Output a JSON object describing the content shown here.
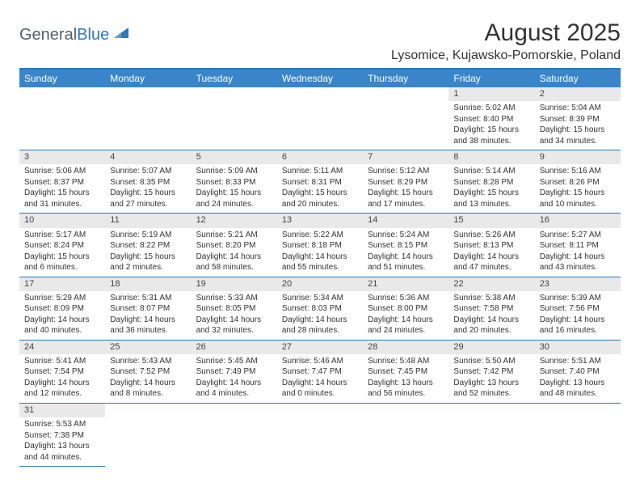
{
  "brand": {
    "general": "General",
    "blue": "Blue",
    "sail_color": "#2f77b8"
  },
  "title": {
    "month_year": "August 2025",
    "location": "Lysomice, Kujawsko-Pomorskie, Poland"
  },
  "calendar": {
    "header_bg": "#3a85c9",
    "header_fg": "#ffffff",
    "rule_color": "#2f77b8",
    "daynum_bg": "#e9e9e9",
    "columns": [
      "Sunday",
      "Monday",
      "Tuesday",
      "Wednesday",
      "Thursday",
      "Friday",
      "Saturday"
    ],
    "first_weekday_index": 5,
    "days": [
      {
        "n": 1,
        "sunrise": "5:02 AM",
        "sunset": "8:40 PM",
        "daylight": "15 hours and 38 minutes."
      },
      {
        "n": 2,
        "sunrise": "5:04 AM",
        "sunset": "8:39 PM",
        "daylight": "15 hours and 34 minutes."
      },
      {
        "n": 3,
        "sunrise": "5:06 AM",
        "sunset": "8:37 PM",
        "daylight": "15 hours and 31 minutes."
      },
      {
        "n": 4,
        "sunrise": "5:07 AM",
        "sunset": "8:35 PM",
        "daylight": "15 hours and 27 minutes."
      },
      {
        "n": 5,
        "sunrise": "5:09 AM",
        "sunset": "8:33 PM",
        "daylight": "15 hours and 24 minutes."
      },
      {
        "n": 6,
        "sunrise": "5:11 AM",
        "sunset": "8:31 PM",
        "daylight": "15 hours and 20 minutes."
      },
      {
        "n": 7,
        "sunrise": "5:12 AM",
        "sunset": "8:29 PM",
        "daylight": "15 hours and 17 minutes."
      },
      {
        "n": 8,
        "sunrise": "5:14 AM",
        "sunset": "8:28 PM",
        "daylight": "15 hours and 13 minutes."
      },
      {
        "n": 9,
        "sunrise": "5:16 AM",
        "sunset": "8:26 PM",
        "daylight": "15 hours and 10 minutes."
      },
      {
        "n": 10,
        "sunrise": "5:17 AM",
        "sunset": "8:24 PM",
        "daylight": "15 hours and 6 minutes."
      },
      {
        "n": 11,
        "sunrise": "5:19 AM",
        "sunset": "8:22 PM",
        "daylight": "15 hours and 2 minutes."
      },
      {
        "n": 12,
        "sunrise": "5:21 AM",
        "sunset": "8:20 PM",
        "daylight": "14 hours and 58 minutes."
      },
      {
        "n": 13,
        "sunrise": "5:22 AM",
        "sunset": "8:18 PM",
        "daylight": "14 hours and 55 minutes."
      },
      {
        "n": 14,
        "sunrise": "5:24 AM",
        "sunset": "8:15 PM",
        "daylight": "14 hours and 51 minutes."
      },
      {
        "n": 15,
        "sunrise": "5:26 AM",
        "sunset": "8:13 PM",
        "daylight": "14 hours and 47 minutes."
      },
      {
        "n": 16,
        "sunrise": "5:27 AM",
        "sunset": "8:11 PM",
        "daylight": "14 hours and 43 minutes."
      },
      {
        "n": 17,
        "sunrise": "5:29 AM",
        "sunset": "8:09 PM",
        "daylight": "14 hours and 40 minutes."
      },
      {
        "n": 18,
        "sunrise": "5:31 AM",
        "sunset": "8:07 PM",
        "daylight": "14 hours and 36 minutes."
      },
      {
        "n": 19,
        "sunrise": "5:33 AM",
        "sunset": "8:05 PM",
        "daylight": "14 hours and 32 minutes."
      },
      {
        "n": 20,
        "sunrise": "5:34 AM",
        "sunset": "8:03 PM",
        "daylight": "14 hours and 28 minutes."
      },
      {
        "n": 21,
        "sunrise": "5:36 AM",
        "sunset": "8:00 PM",
        "daylight": "14 hours and 24 minutes."
      },
      {
        "n": 22,
        "sunrise": "5:38 AM",
        "sunset": "7:58 PM",
        "daylight": "14 hours and 20 minutes."
      },
      {
        "n": 23,
        "sunrise": "5:39 AM",
        "sunset": "7:56 PM",
        "daylight": "14 hours and 16 minutes."
      },
      {
        "n": 24,
        "sunrise": "5:41 AM",
        "sunset": "7:54 PM",
        "daylight": "14 hours and 12 minutes."
      },
      {
        "n": 25,
        "sunrise": "5:43 AM",
        "sunset": "7:52 PM",
        "daylight": "14 hours and 8 minutes."
      },
      {
        "n": 26,
        "sunrise": "5:45 AM",
        "sunset": "7:49 PM",
        "daylight": "14 hours and 4 minutes."
      },
      {
        "n": 27,
        "sunrise": "5:46 AM",
        "sunset": "7:47 PM",
        "daylight": "14 hours and 0 minutes."
      },
      {
        "n": 28,
        "sunrise": "5:48 AM",
        "sunset": "7:45 PM",
        "daylight": "13 hours and 56 minutes."
      },
      {
        "n": 29,
        "sunrise": "5:50 AM",
        "sunset": "7:42 PM",
        "daylight": "13 hours and 52 minutes."
      },
      {
        "n": 30,
        "sunrise": "5:51 AM",
        "sunset": "7:40 PM",
        "daylight": "13 hours and 48 minutes."
      },
      {
        "n": 31,
        "sunrise": "5:53 AM",
        "sunset": "7:38 PM",
        "daylight": "13 hours and 44 minutes."
      }
    ],
    "labels": {
      "sunrise": "Sunrise:",
      "sunset": "Sunset:",
      "daylight": "Daylight:"
    }
  }
}
